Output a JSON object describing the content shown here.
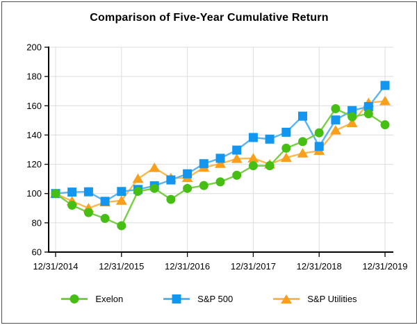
{
  "chart_data": {
    "type": "line",
    "title": "Comparison of Five-Year Cumulative Return",
    "x": [
      "12/31/2014",
      "3/31/2015",
      "6/30/2015",
      "9/30/2015",
      "12/31/2015",
      "3/31/2016",
      "6/30/2016",
      "9/30/2016",
      "12/31/2016",
      "3/31/2017",
      "6/30/2017",
      "9/30/2017",
      "12/31/2017",
      "3/31/2018",
      "6/30/2018",
      "9/30/2018",
      "12/31/2018",
      "3/31/2019",
      "6/30/2019",
      "9/30/2019",
      "12/31/2019"
    ],
    "x_tick_labels": [
      "12/31/2014",
      "12/31/2015",
      "12/31/2016",
      "12/31/2017",
      "12/31/2018",
      "12/31/2019"
    ],
    "y_ticks": [
      60,
      80,
      100,
      120,
      140,
      160,
      180,
      200
    ],
    "ylim": [
      60,
      200
    ],
    "grid": true,
    "legend_position": "bottom",
    "colors": {
      "grid": "#dcdcdc",
      "axis": "#000000"
    },
    "series": [
      {
        "name": "Exelon",
        "marker": "circle",
        "color": "#46be14",
        "line_color": "#78cd46",
        "values": [
          100,
          92,
          87,
          83,
          78,
          101.5,
          103.5,
          96,
          103.5,
          105.5,
          108,
          112.5,
          119,
          119,
          131,
          135.5,
          141.5,
          158,
          152.5,
          154.5,
          147
        ]
      },
      {
        "name": "S&P 500",
        "marker": "square",
        "color": "#1296f0",
        "line_color": "#5ab4f2",
        "values": [
          100,
          101,
          101.2,
          94.7,
          101.4,
          102.8,
          105.3,
          109.3,
          113.5,
          120.4,
          124.1,
          129.7,
          138.3,
          137.2,
          141.9,
          152.9,
          132.2,
          150.3,
          156.7,
          159.4,
          173.9
        ]
      },
      {
        "name": "S&P Utilities",
        "marker": "triangle",
        "color": "#f8a01c",
        "line_color": "#fab84d",
        "values": [
          100,
          94.8,
          90,
          94.1,
          95.2,
          110.1,
          117.6,
          110.6,
          110.7,
          117.8,
          120.4,
          123.8,
          124.1,
          120,
          124.5,
          127.5,
          129.2,
          143.2,
          148.2,
          162,
          163.2
        ]
      }
    ]
  }
}
